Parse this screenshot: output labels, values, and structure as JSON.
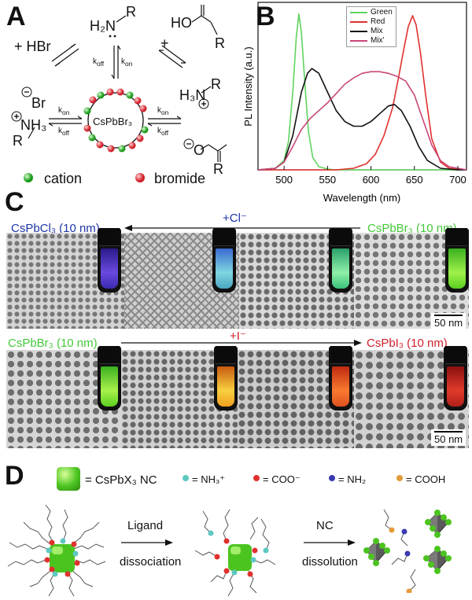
{
  "panels": {
    "a": "A",
    "b": "B",
    "c": "C",
    "d": "D"
  },
  "panelA": {
    "hbr": "+ HBr",
    "amine": "H₂N",
    "amine_r": "R",
    "acid_oh": "HO",
    "acid_r": "R",
    "plus": "+",
    "k_off": "k",
    "off": "off",
    "on": "on",
    "core": "CsPbBr₃",
    "br": "Br",
    "ammonium": "NH₃",
    "r_left": "R",
    "h3n": "H₃N",
    "r_right": "R",
    "carboxylate_o": "O",
    "carboxylate_r": "R",
    "legend_cation": "cation",
    "legend_bromide": "bromide"
  },
  "panelC": {
    "top_left_label": "CsPbCl₃ (10 nm)",
    "top_arrow_label": "+Cl⁻",
    "top_right_label": "CsPbBr₃ (10 nm)",
    "bottom_left_label": "CsPbBr₃ (10 nm)",
    "bottom_arrow_label": "+I⁻",
    "bottom_right_label": "CsPbI₃ (10 nm)",
    "scale_top": "50 nm",
    "scale_bottom": "50 nm"
  },
  "panelD": {
    "nc_legend": "= CsPbX₃ NC",
    "nh3": "= NH₃⁺",
    "coo": "= COO⁻",
    "nh2": "= NH₂",
    "cooh": "= COOH",
    "step1_top": "Ligand",
    "step1_bottom": "dissociation",
    "step2_top": "NC",
    "step2_bottom": "dissolution"
  },
  "chart_data": {
    "type": "line",
    "title": "",
    "xlabel": "Wavelength (nm)",
    "ylabel": "PL Intensity (a.u.)",
    "xlim": [
      470,
      710
    ],
    "ylim": [
      0,
      1.05
    ],
    "xticks": [
      500,
      550,
      600,
      650,
      700
    ],
    "legend_position": "top-left",
    "series": [
      {
        "name": "Green",
        "color": "#5fd35f",
        "x": [
          470,
          490,
          500,
          505,
          510,
          514,
          517,
          520,
          524,
          528,
          533,
          540,
          550,
          560,
          600,
          700
        ],
        "y": [
          0,
          0.01,
          0.06,
          0.18,
          0.5,
          0.85,
          1.0,
          0.88,
          0.55,
          0.25,
          0.08,
          0.02,
          0.005,
          0,
          0,
          0
        ]
      },
      {
        "name": "Red",
        "color": "#e0312e",
        "x": [
          470,
          560,
          580,
          595,
          605,
          615,
          625,
          632,
          638,
          643,
          648,
          652,
          657,
          663,
          670,
          680,
          690,
          710
        ],
        "y": [
          0,
          0,
          0.01,
          0.04,
          0.1,
          0.22,
          0.4,
          0.6,
          0.78,
          0.92,
          0.99,
          0.93,
          0.75,
          0.48,
          0.2,
          0.05,
          0.01,
          0
        ]
      },
      {
        "name": "Mix",
        "color": "#111111",
        "x": [
          470,
          490,
          500,
          510,
          520,
          527,
          532,
          540,
          550,
          560,
          570,
          580,
          590,
          600,
          610,
          620,
          627,
          635,
          645,
          655,
          665,
          680,
          700,
          710
        ],
        "y": [
          0,
          0.01,
          0.05,
          0.22,
          0.5,
          0.62,
          0.65,
          0.62,
          0.5,
          0.38,
          0.31,
          0.28,
          0.28,
          0.31,
          0.36,
          0.41,
          0.42,
          0.38,
          0.28,
          0.15,
          0.06,
          0.01,
          0,
          0
        ]
      },
      {
        "name": "Mix'",
        "color": "#c94678",
        "x": [
          470,
          490,
          500,
          510,
          520,
          530,
          540,
          550,
          560,
          570,
          580,
          590,
          600,
          610,
          620,
          630,
          640,
          650,
          660,
          670,
          680,
          690,
          710
        ],
        "y": [
          0,
          0.01,
          0.05,
          0.15,
          0.26,
          0.33,
          0.38,
          0.43,
          0.49,
          0.55,
          0.59,
          0.62,
          0.63,
          0.63,
          0.62,
          0.6,
          0.57,
          0.48,
          0.32,
          0.16,
          0.06,
          0.02,
          0
        ]
      }
    ]
  }
}
